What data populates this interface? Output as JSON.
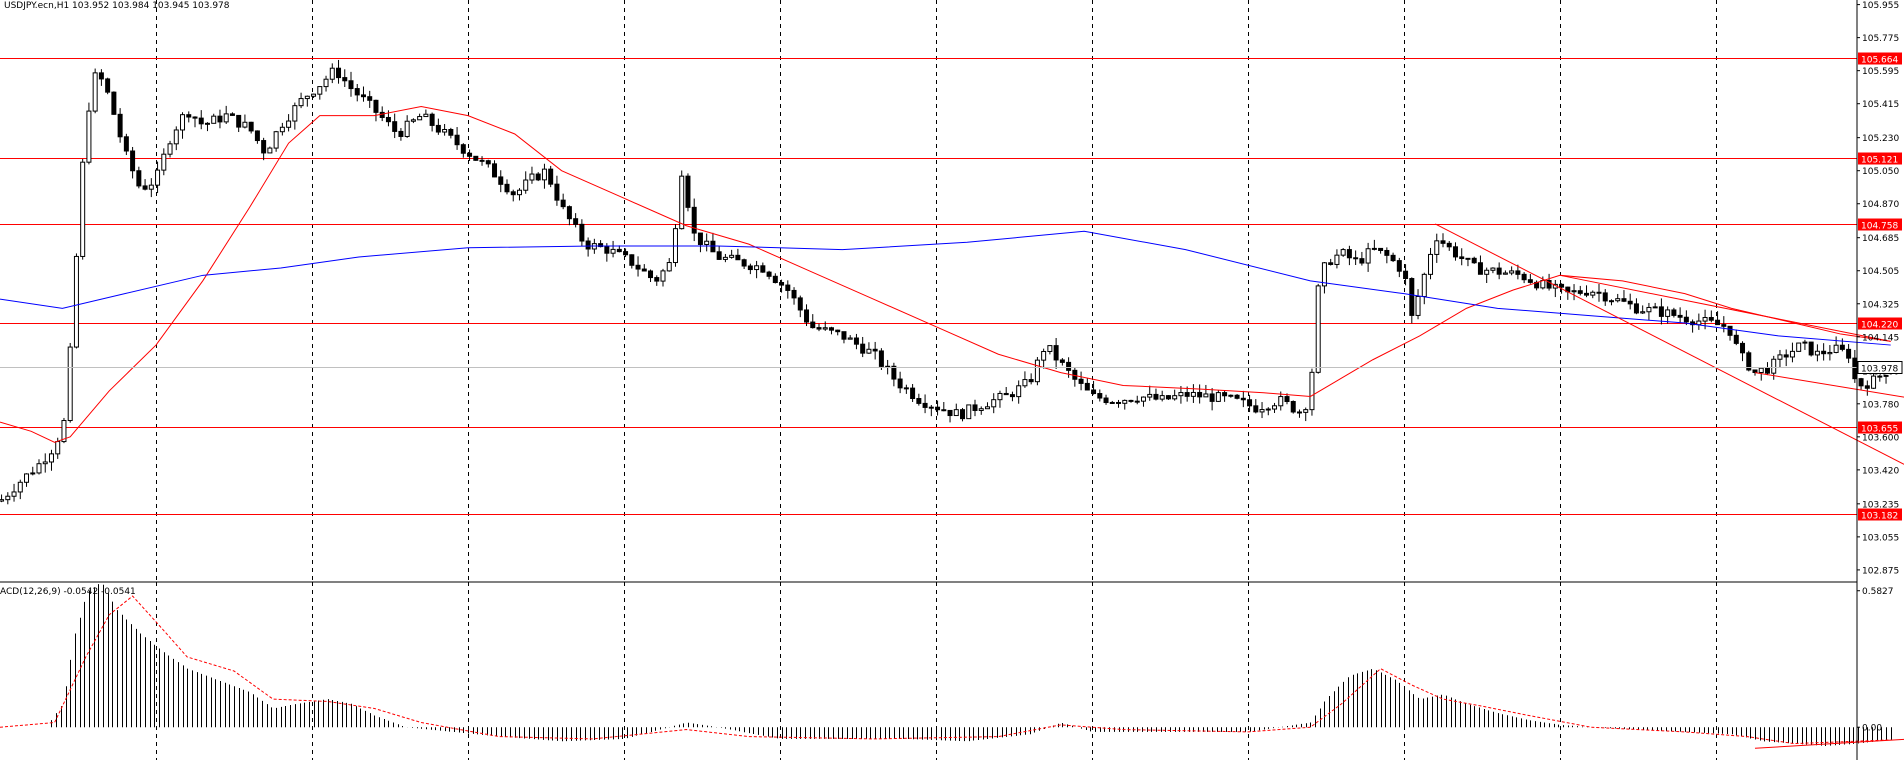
{
  "colors": {
    "background": "#ffffff",
    "candle": "#000000",
    "grid": "#000000",
    "support_resistance": "#ff0000",
    "ma_fast": "#ff0000",
    "ma_slow": "#0000ff",
    "price_line": "#c0c0c0",
    "label_red_bg": "#ff0000",
    "label_text": "#ffffff",
    "macd_hist": "#000000",
    "macd_signal": "#ff0000"
  },
  "header": {
    "symbol_line": "USDJPY.ecn,H1  103.952 103.984 103.945 103.978"
  },
  "chart_data": [
    {
      "type": "candlestick",
      "title": "USDJPY.ecn,H1  103.952 103.984 103.945 103.978",
      "ylim": [
        102.82,
        105.98
      ],
      "ticks": [
        105.955,
        105.775,
        105.595,
        105.415,
        105.23,
        105.05,
        104.87,
        104.685,
        104.505,
        104.325,
        104.145,
        103.96,
        103.78,
        103.6,
        103.42,
        103.235,
        103.055,
        102.875
      ],
      "tick_labels": [
        "105.955",
        "105.775",
        "105.595",
        "105.415",
        "105.230",
        "105.050",
        "104.870",
        "104.685",
        "104.505",
        "104.325",
        "104.145",
        "103.960",
        "103.780",
        "103.600",
        "103.420",
        "103.235",
        "103.055",
        "102.875"
      ],
      "current_price": 103.978,
      "current_price_label": "103.978",
      "levels": [
        {
          "value": 105.664,
          "label": "105.664"
        },
        {
          "value": 105.121,
          "label": "105.121"
        },
        {
          "value": 104.758,
          "label": "104.758"
        },
        {
          "value": 104.22,
          "label": "104.220"
        },
        {
          "value": 103.655,
          "label": "103.655"
        },
        {
          "value": 103.182,
          "label": "103.182"
        }
      ],
      "price_path": [
        [
          0,
          103.25
        ],
        [
          12,
          103.35
        ],
        [
          25,
          103.45
        ],
        [
          35,
          103.55
        ],
        [
          42,
          103.7
        ],
        [
          47,
          104.3
        ],
        [
          52,
          105.0
        ],
        [
          57,
          105.4
        ],
        [
          62,
          105.6
        ],
        [
          70,
          105.45
        ],
        [
          80,
          105.15
        ],
        [
          90,
          104.95
        ],
        [
          100,
          105.0
        ],
        [
          110,
          105.25
        ],
        [
          120,
          105.38
        ],
        [
          130,
          105.3
        ],
        [
          145,
          105.35
        ],
        [
          160,
          105.28
        ],
        [
          170,
          105.15
        ],
        [
          180,
          105.3
        ],
        [
          195,
          105.45
        ],
        [
          205,
          105.52
        ],
        [
          215,
          105.6
        ],
        [
          225,
          105.5
        ],
        [
          240,
          105.38
        ],
        [
          255,
          105.25
        ],
        [
          270,
          105.35
        ],
        [
          285,
          105.25
        ],
        [
          300,
          105.15
        ],
        [
          315,
          105.05
        ],
        [
          330,
          104.92
        ],
        [
          340,
          105.0
        ],
        [
          350,
          105.05
        ],
        [
          360,
          104.85
        ],
        [
          375,
          104.65
        ],
        [
          390,
          104.62
        ],
        [
          405,
          104.55
        ],
        [
          420,
          104.45
        ],
        [
          430,
          104.55
        ],
        [
          437,
          105.05
        ],
        [
          445,
          104.7
        ],
        [
          460,
          104.58
        ],
        [
          475,
          104.55
        ],
        [
          490,
          104.52
        ],
        [
          505,
          104.4
        ],
        [
          520,
          104.2
        ],
        [
          540,
          104.15
        ],
        [
          560,
          104.05
        ],
        [
          575,
          103.9
        ],
        [
          590,
          103.8
        ],
        [
          605,
          103.75
        ],
        [
          615,
          103.72
        ],
        [
          630,
          103.78
        ],
        [
          645,
          103.82
        ],
        [
          660,
          103.9
        ],
        [
          670,
          104.1
        ],
        [
          680,
          104.0
        ],
        [
          690,
          103.9
        ],
        [
          700,
          103.82
        ],
        [
          715,
          103.8
        ],
        [
          730,
          103.82
        ],
        [
          745,
          103.8
        ],
        [
          760,
          103.83
        ],
        [
          775,
          103.82
        ],
        [
          790,
          103.8
        ],
        [
          805,
          103.76
        ],
        [
          820,
          103.8
        ],
        [
          835,
          103.73
        ],
        [
          840,
          103.85
        ],
        [
          845,
          104.4
        ],
        [
          850,
          104.55
        ],
        [
          860,
          104.6
        ],
        [
          870,
          104.55
        ],
        [
          880,
          104.62
        ],
        [
          890,
          104.58
        ],
        [
          900,
          104.5
        ],
        [
          905,
          104.25
        ],
        [
          912,
          104.45
        ],
        [
          920,
          104.7
        ],
        [
          930,
          104.62
        ],
        [
          945,
          104.52
        ],
        [
          960,
          104.5
        ],
        [
          975,
          104.48
        ],
        [
          990,
          104.42
        ],
        [
          1005,
          104.38
        ],
        [
          1020,
          104.4
        ],
        [
          1035,
          104.35
        ],
        [
          1050,
          104.3
        ],
        [
          1065,
          104.28
        ],
        [
          1080,
          104.25
        ],
        [
          1095,
          104.22
        ],
        [
          1108,
          104.2
        ],
        [
          1115,
          104.05
        ],
        [
          1125,
          103.95
        ],
        [
          1135,
          103.98
        ],
        [
          1145,
          104.05
        ],
        [
          1155,
          104.1
        ],
        [
          1165,
          104.05
        ],
        [
          1175,
          104.08
        ],
        [
          1185,
          104.05
        ],
        [
          1190,
          103.88
        ],
        [
          1200,
          103.9
        ],
        [
          1212,
          103.978
        ]
      ],
      "moving_averages": [
        {
          "color": "red",
          "points": [
            [
              0,
              103.68
            ],
            [
              20,
              103.63
            ],
            [
              35,
              103.57
            ],
            [
              45,
              103.6
            ],
            [
              70,
              103.85
            ],
            [
              100,
              104.1
            ],
            [
              130,
              104.45
            ],
            [
              160,
              104.85
            ],
            [
              185,
              105.2
            ],
            [
              205,
              105.35
            ],
            [
              240,
              105.35
            ],
            [
              270,
              105.4
            ],
            [
              300,
              105.35
            ],
            [
              330,
              105.25
            ],
            [
              360,
              105.05
            ],
            [
              400,
              104.9
            ],
            [
              440,
              104.75
            ],
            [
              480,
              104.65
            ],
            [
              520,
              104.5
            ],
            [
              560,
              104.35
            ],
            [
              600,
              104.2
            ],
            [
              640,
              104.05
            ],
            [
              680,
              103.95
            ],
            [
              720,
              103.88
            ],
            [
              770,
              103.86
            ],
            [
              810,
              103.84
            ],
            [
              840,
              103.82
            ],
            [
              860,
              103.92
            ],
            [
              880,
              104.02
            ],
            [
              910,
              104.15
            ],
            [
              940,
              104.3
            ],
            [
              970,
              104.4
            ],
            [
              1000,
              104.48
            ],
            [
              1040,
              104.45
            ],
            [
              1080,
              104.38
            ],
            [
              1110,
              104.3
            ],
            [
              1150,
              104.22
            ],
            [
              1180,
              104.16
            ],
            [
              1212,
              104.12
            ]
          ]
        },
        {
          "color": "blue",
          "points": [
            [
              0,
              104.35
            ],
            [
              40,
              104.3
            ],
            [
              80,
              104.38
            ],
            [
              130,
              104.48
            ],
            [
              180,
              104.52
            ],
            [
              230,
              104.58
            ],
            [
              300,
              104.63
            ],
            [
              380,
              104.64
            ],
            [
              460,
              104.64
            ],
            [
              540,
              104.62
            ],
            [
              620,
              104.66
            ],
            [
              695,
              104.72
            ],
            [
              760,
              104.62
            ],
            [
              840,
              104.45
            ],
            [
              900,
              104.38
            ],
            [
              960,
              104.3
            ],
            [
              1020,
              104.26
            ],
            [
              1080,
              104.22
            ],
            [
              1140,
              104.15
            ],
            [
              1212,
              104.1
            ]
          ]
        }
      ],
      "trendlines": [
        {
          "from": [
            920,
            104.76
          ],
          "to": [
            1904,
            103.45
          ]
        },
        {
          "from": [
            1000,
            104.48
          ],
          "to": [
            1212,
            104.12
          ]
        },
        {
          "from": [
            1125,
            103.95
          ],
          "to": [
            1232,
            103.8
          ]
        }
      ]
    },
    {
      "type": "macd",
      "label": "ACD(12,26,9) -0.0542 -0.0541",
      "ylim": [
        -0.14,
        0.62
      ],
      "ticks": [
        0.5827,
        0.0
      ],
      "tick_labels": [
        "0.5827",
        "0.00"
      ],
      "histogram_path": [
        [
          0,
          0.0
        ],
        [
          30,
          0.0
        ],
        [
          40,
          0.1
        ],
        [
          48,
          0.4
        ],
        [
          56,
          0.58
        ],
        [
          65,
          0.62
        ],
        [
          75,
          0.5
        ],
        [
          90,
          0.4
        ],
        [
          105,
          0.32
        ],
        [
          120,
          0.25
        ],
        [
          140,
          0.2
        ],
        [
          160,
          0.15
        ],
        [
          175,
          0.08
        ],
        [
          190,
          0.1
        ],
        [
          210,
          0.12
        ],
        [
          225,
          0.1
        ],
        [
          240,
          0.05
        ],
        [
          260,
          0.0
        ],
        [
          290,
          -0.02
        ],
        [
          320,
          -0.04
        ],
        [
          360,
          -0.06
        ],
        [
          400,
          -0.05
        ],
        [
          440,
          0.02
        ],
        [
          460,
          0.0
        ],
        [
          500,
          -0.05
        ],
        [
          540,
          -0.05
        ],
        [
          580,
          -0.05
        ],
        [
          620,
          -0.06
        ],
        [
          660,
          -0.03
        ],
        [
          680,
          0.02
        ],
        [
          700,
          -0.02
        ],
        [
          740,
          -0.02
        ],
        [
          800,
          -0.02
        ],
        [
          840,
          0.02
        ],
        [
          850,
          0.12
        ],
        [
          865,
          0.22
        ],
        [
          880,
          0.25
        ],
        [
          895,
          0.2
        ],
        [
          910,
          0.12
        ],
        [
          925,
          0.14
        ],
        [
          940,
          0.1
        ],
        [
          960,
          0.06
        ],
        [
          980,
          0.03
        ],
        [
          1000,
          0.01
        ],
        [
          1020,
          0.0
        ],
        [
          1050,
          -0.01
        ],
        [
          1080,
          -0.02
        ],
        [
          1110,
          -0.03
        ],
        [
          1130,
          -0.06
        ],
        [
          1150,
          -0.07
        ],
        [
          1170,
          -0.08
        ],
        [
          1190,
          -0.07
        ],
        [
          1212,
          -0.0542
        ]
      ],
      "signal_path": [
        [
          0,
          0.0
        ],
        [
          35,
          0.02
        ],
        [
          55,
          0.3
        ],
        [
          70,
          0.48
        ],
        [
          85,
          0.56
        ],
        [
          100,
          0.45
        ],
        [
          120,
          0.3
        ],
        [
          150,
          0.24
        ],
        [
          175,
          0.12
        ],
        [
          210,
          0.11
        ],
        [
          240,
          0.08
        ],
        [
          270,
          0.02
        ],
        [
          320,
          -0.04
        ],
        [
          380,
          -0.05
        ],
        [
          440,
          -0.01
        ],
        [
          480,
          -0.04
        ],
        [
          560,
          -0.05
        ],
        [
          640,
          -0.04
        ],
        [
          680,
          0.01
        ],
        [
          720,
          -0.01
        ],
        [
          800,
          -0.02
        ],
        [
          840,
          0.0
        ],
        [
          860,
          0.1
        ],
        [
          885,
          0.25
        ],
        [
          905,
          0.18
        ],
        [
          925,
          0.12
        ],
        [
          950,
          0.09
        ],
        [
          980,
          0.05
        ],
        [
          1020,
          0.0
        ],
        [
          1080,
          -0.02
        ],
        [
          1120,
          -0.04
        ],
        [
          1150,
          -0.07
        ],
        [
          1212,
          -0.0541
        ]
      ],
      "divergence_line": {
        "from": [
          1125,
          -0.09
        ],
        "to": [
          1225,
          -0.05
        ]
      }
    }
  ]
}
